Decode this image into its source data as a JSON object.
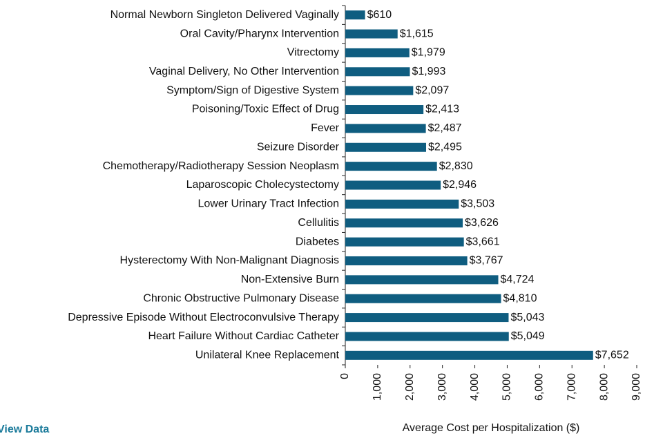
{
  "chart_data": {
    "type": "bar",
    "orientation": "horizontal",
    "x_label": "Average Cost per Hospitalization ($)",
    "categories": [
      "Normal Newborn Singleton Delivered Vaginally",
      "Oral Cavity/Pharynx Intervention",
      "Vitrectomy",
      "Vaginal Delivery, No Other Intervention",
      "Symptom/Sign of Digestive System",
      "Poisoning/Toxic Effect of Drug",
      "Fever",
      "Seizure Disorder",
      "Chemotherapy/Radiotherapy Session Neoplasm",
      "Laparoscopic Cholecystectomy",
      "Lower Urinary Tract Infection",
      "Cellulitis",
      "Diabetes",
      "Hysterectomy With Non-Malignant Diagnosis",
      "Non-Extensive Burn",
      "Chronic Obstructive Pulmonary Disease",
      "Depressive Episode Without Electroconvulsive Therapy",
      "Heart Failure Without Cardiac Catheter",
      "Unilateral Knee Replacement"
    ],
    "values": [
      610,
      1615,
      1979,
      1993,
      2097,
      2413,
      2487,
      2495,
      2830,
      2946,
      3503,
      3626,
      3661,
      3767,
      4724,
      4810,
      5043,
      5049,
      7652
    ],
    "value_labels": [
      "$610",
      "$1,615",
      "$1,979",
      "$1,993",
      "$2,097",
      "$2,413",
      "$2,487",
      "$2,495",
      "$2,830",
      "$2,946",
      "$3,503",
      "$3,626",
      "$3,661",
      "$3,767",
      "$4,724",
      "$4,810",
      "$5,043",
      "$5,049",
      "$7,652"
    ],
    "color": "#0f5d80",
    "xlim": [
      0,
      9000
    ],
    "xticks": [
      0,
      {
        "value": 1000,
        "label": "1,000"
      },
      {
        "value": 2000,
        "label": "2,000"
      },
      {
        "value": 3000,
        "label": "3,000"
      },
      {
        "value": 4000,
        "label": "4,000"
      },
      {
        "value": 5000,
        "label": "5,000"
      },
      {
        "value": 6000,
        "label": "6,000"
      },
      {
        "value": 7000,
        "label": "7,000"
      },
      {
        "value": 8000,
        "label": "8,000"
      },
      {
        "value": 9000,
        "label": "9,000"
      }
    ]
  },
  "view_data_link": "View Data"
}
